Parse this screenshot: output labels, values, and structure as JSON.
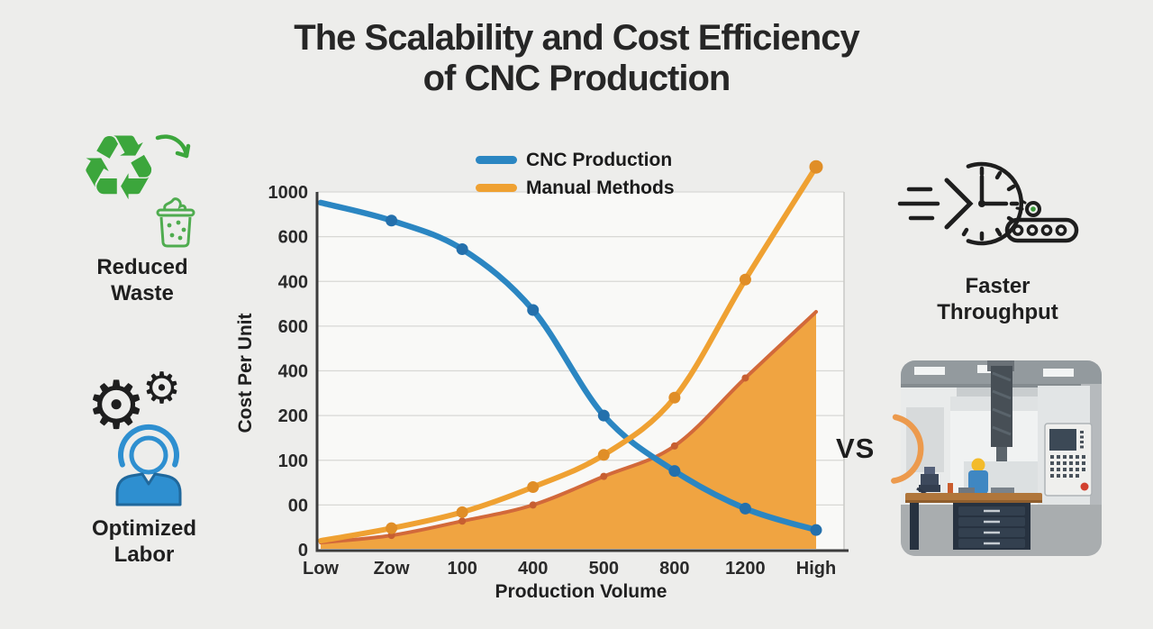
{
  "title": {
    "line1": "The Scalability and Cost Efficiency",
    "line2": "of CNC Production"
  },
  "features": {
    "reduced_waste": {
      "line1": "Reduced",
      "line2": "Waste"
    },
    "optimized_labor": {
      "line1": "Optimized",
      "line2": "Labor"
    },
    "faster_throughput": {
      "line1": "Faster",
      "line2": "Throughput"
    }
  },
  "vs_label": "VS",
  "icons": {
    "recycling_glyph": "♻",
    "gear_glyph": "⚙",
    "recycling_icon": "green recycling arrows with curved arrow and waste bin",
    "labor_icon": "two gears with blue worker figure",
    "throughput_icon": "speeding clock with conveyor belt",
    "photo": "CNC machining center with control panel and workbench"
  },
  "colors": {
    "background": "#EDEDEB",
    "plot_background": "#F9F9F7",
    "grid": "#D8D8D5",
    "text": "#242424",
    "cnc_blue": "#2B86C2",
    "manual_orange": "#EFA132",
    "area_fill": "#F0A441",
    "area_line": "#D2693A",
    "green": "#3CA63C",
    "person_blue": "#2E8FD0",
    "arc_orange": "#EC9A4D"
  },
  "chart_data": {
    "type": "line",
    "title": "",
    "xlabel": "Production Volume",
    "ylabel": "Cost Per Unit",
    "categories": [
      "Low",
      "Zow",
      "100",
      "400",
      "500",
      "800",
      "1200",
      "High"
    ],
    "y_tick_labels": [
      "1000",
      "600",
      "400",
      "600",
      "400",
      "200",
      "100",
      "00",
      "0"
    ],
    "ylim": [
      0,
      1000
    ],
    "grid": true,
    "legend_position": "top",
    "legend": [
      {
        "name": "CNC Production",
        "color": "#2B86C2"
      },
      {
        "name": "Manual Methods",
        "color": "#EFA132"
      }
    ],
    "series": [
      {
        "name": "CNC Production",
        "type": "line",
        "color": "#2B86C2",
        "marker_color": "#2470AC",
        "values": [
          970,
          920,
          840,
          670,
          375,
          220,
          115,
          55
        ]
      },
      {
        "name": "Manual Methods",
        "type": "line",
        "color": "#EFA132",
        "marker_color": "#E08E27",
        "values": [
          25,
          60,
          105,
          175,
          265,
          425,
          755,
          1070
        ]
      },
      {
        "name": "Manual Methods (shaded area)",
        "type": "area",
        "line_color": "#D2693A",
        "fill_color": "#F0A441",
        "marker_color": "#C75F31",
        "values": [
          20,
          40,
          80,
          125,
          205,
          290,
          480,
          665
        ]
      }
    ]
  }
}
